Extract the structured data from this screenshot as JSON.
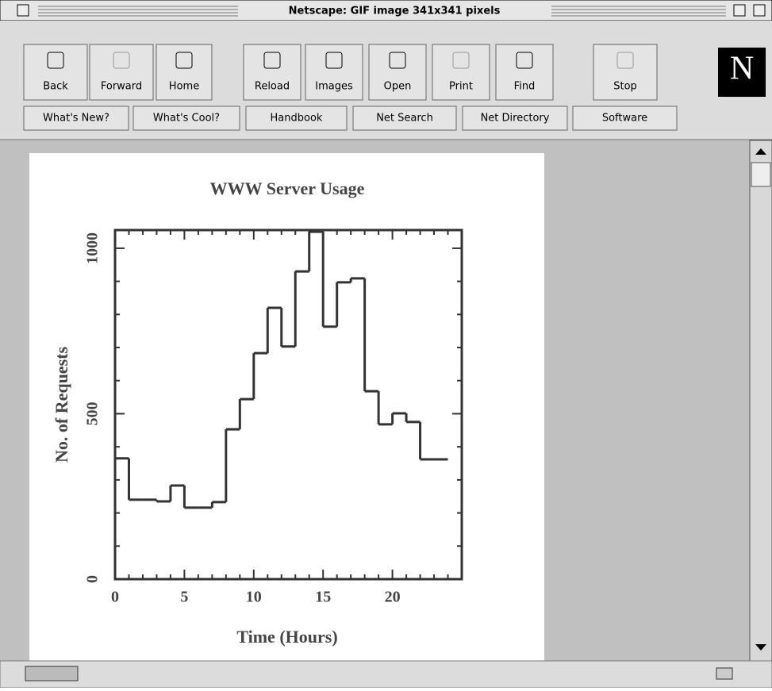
{
  "window": {
    "title": "Netscape: GIF image 341x341 pixels"
  },
  "toolbar": [
    {
      "label": "Back",
      "enabled": true
    },
    {
      "label": "Forward",
      "enabled": false
    },
    {
      "label": "Home",
      "enabled": true
    },
    {
      "label": "Reload",
      "enabled": true
    },
    {
      "label": "Images",
      "enabled": true
    },
    {
      "label": "Open",
      "enabled": true
    },
    {
      "label": "Print",
      "enabled": false
    },
    {
      "label": "Find",
      "enabled": true
    },
    {
      "label": "Stop",
      "enabled": false
    }
  ],
  "logo": "N",
  "directory_buttons": [
    "What's New?",
    "What's Cool?",
    "Handbook",
    "Net Search",
    "Net Directory",
    "Software"
  ],
  "chart_data": {
    "type": "histogram",
    "title": "WWW Server Usage",
    "x_label": "Time (Hours)",
    "y_label": "No. of Requests",
    "bins": [
      0,
      1,
      2,
      3,
      4,
      5,
      6,
      7,
      8,
      9,
      10,
      11,
      12,
      13,
      14,
      15,
      16,
      17,
      18,
      19,
      20,
      21,
      22,
      23,
      24
    ],
    "values": [
      365,
      240,
      240,
      235,
      283,
      216,
      216,
      233,
      453,
      544,
      683,
      820,
      703,
      930,
      1050,
      763,
      897,
      909,
      568,
      468,
      501,
      475,
      362,
      362
    ],
    "color": "#333333",
    "xlim": [
      0,
      25
    ],
    "xticks": [
      0,
      5,
      10,
      15,
      20
    ],
    "xticks_minor": [
      1,
      2,
      3,
      4,
      6,
      7,
      8,
      9,
      11,
      12,
      13,
      14,
      16,
      17,
      18,
      19,
      21,
      22,
      23,
      24
    ],
    "ylim": [
      0,
      1055
    ],
    "yticks": [
      0,
      500,
      1000
    ],
    "yticks_minor": [
      100,
      200,
      300,
      400,
      600,
      700,
      800,
      900
    ]
  }
}
